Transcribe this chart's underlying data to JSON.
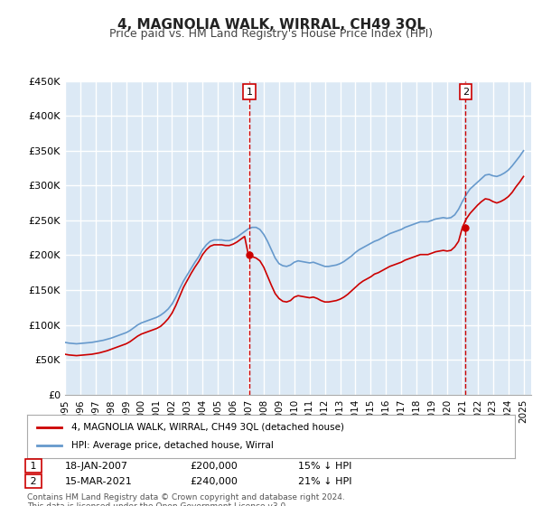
{
  "title": "4, MAGNOLIA WALK, WIRRAL, CH49 3QL",
  "subtitle": "Price paid vs. HM Land Registry's House Price Index (HPI)",
  "ylabel": "",
  "xlabel": "",
  "ylim": [
    0,
    450000
  ],
  "yticks": [
    0,
    50000,
    100000,
    150000,
    200000,
    250000,
    300000,
    350000,
    400000,
    450000
  ],
  "ytick_labels": [
    "£0",
    "£50K",
    "£100K",
    "£150K",
    "£200K",
    "£250K",
    "£300K",
    "£350K",
    "£400K",
    "£450K"
  ],
  "xlim_start": 1995.0,
  "xlim_end": 2025.5,
  "bg_color": "#dce9f5",
  "grid_color": "#ffffff",
  "red_line_color": "#cc0000",
  "blue_line_color": "#6699cc",
  "annotation_box_color": "#cc0000",
  "legend_entries": [
    "4, MAGNOLIA WALK, WIRRAL, CH49 3QL (detached house)",
    "HPI: Average price, detached house, Wirral"
  ],
  "footnote": "Contains HM Land Registry data © Crown copyright and database right 2024.\nThis data is licensed under the Open Government Licence v3.0.",
  "point1_x": 2007.05,
  "point1_y": 200000,
  "point1_label": "1",
  "point1_date": "18-JAN-2007",
  "point1_price": "£200,000",
  "point1_hpi": "15% ↓ HPI",
  "point2_x": 2021.21,
  "point2_y": 240000,
  "point2_label": "2",
  "point2_date": "15-MAR-2021",
  "point2_price": "£240,000",
  "point2_hpi": "21% ↓ HPI",
  "hpi_data_x": [
    1995.0,
    1995.25,
    1995.5,
    1995.75,
    1996.0,
    1996.25,
    1996.5,
    1996.75,
    1997.0,
    1997.25,
    1997.5,
    1997.75,
    1998.0,
    1998.25,
    1998.5,
    1998.75,
    1999.0,
    1999.25,
    1999.5,
    1999.75,
    2000.0,
    2000.25,
    2000.5,
    2000.75,
    2001.0,
    2001.25,
    2001.5,
    2001.75,
    2002.0,
    2002.25,
    2002.5,
    2002.75,
    2003.0,
    2003.25,
    2003.5,
    2003.75,
    2004.0,
    2004.25,
    2004.5,
    2004.75,
    2005.0,
    2005.25,
    2005.5,
    2005.75,
    2006.0,
    2006.25,
    2006.5,
    2006.75,
    2007.0,
    2007.25,
    2007.5,
    2007.75,
    2008.0,
    2008.25,
    2008.5,
    2008.75,
    2009.0,
    2009.25,
    2009.5,
    2009.75,
    2010.0,
    2010.25,
    2010.5,
    2010.75,
    2011.0,
    2011.25,
    2011.5,
    2011.75,
    2012.0,
    2012.25,
    2012.5,
    2012.75,
    2013.0,
    2013.25,
    2013.5,
    2013.75,
    2014.0,
    2014.25,
    2014.5,
    2014.75,
    2015.0,
    2015.25,
    2015.5,
    2015.75,
    2016.0,
    2016.25,
    2016.5,
    2016.75,
    2017.0,
    2017.25,
    2017.5,
    2017.75,
    2018.0,
    2018.25,
    2018.5,
    2018.75,
    2019.0,
    2019.25,
    2019.5,
    2019.75,
    2020.0,
    2020.25,
    2020.5,
    2020.75,
    2021.0,
    2021.25,
    2021.5,
    2021.75,
    2022.0,
    2022.25,
    2022.5,
    2022.75,
    2023.0,
    2023.25,
    2023.5,
    2023.75,
    2024.0,
    2024.25,
    2024.5,
    2024.75,
    2025.0
  ],
  "hpi_data_y": [
    75000,
    74000,
    73500,
    73000,
    73500,
    74000,
    74500,
    75000,
    76000,
    77000,
    78000,
    79500,
    81000,
    83000,
    85000,
    87000,
    89000,
    92000,
    96000,
    100000,
    103000,
    105000,
    107000,
    109000,
    111000,
    114000,
    118000,
    123000,
    130000,
    140000,
    152000,
    163000,
    172000,
    181000,
    190000,
    198000,
    208000,
    215000,
    220000,
    222000,
    222000,
    222000,
    221000,
    221000,
    223000,
    226000,
    230000,
    234000,
    238000,
    240000,
    240000,
    237000,
    230000,
    220000,
    208000,
    196000,
    188000,
    185000,
    184000,
    186000,
    190000,
    192000,
    191000,
    190000,
    189000,
    190000,
    188000,
    186000,
    184000,
    184000,
    185000,
    186000,
    188000,
    191000,
    195000,
    199000,
    204000,
    208000,
    211000,
    214000,
    217000,
    220000,
    222000,
    225000,
    228000,
    231000,
    233000,
    235000,
    237000,
    240000,
    242000,
    244000,
    246000,
    248000,
    248000,
    248000,
    250000,
    252000,
    253000,
    254000,
    253000,
    254000,
    258000,
    266000,
    277000,
    287000,
    295000,
    300000,
    305000,
    310000,
    315000,
    316000,
    314000,
    313000,
    315000,
    318000,
    322000,
    328000,
    335000,
    342000,
    350000
  ],
  "red_data_x": [
    1995.0,
    1995.25,
    1995.5,
    1995.75,
    1996.0,
    1996.25,
    1996.5,
    1996.75,
    1997.0,
    1997.25,
    1997.5,
    1997.75,
    1998.0,
    1998.25,
    1998.5,
    1998.75,
    1999.0,
    1999.25,
    1999.5,
    1999.75,
    2000.0,
    2000.25,
    2000.5,
    2000.75,
    2001.0,
    2001.25,
    2001.5,
    2001.75,
    2002.0,
    2002.25,
    2002.5,
    2002.75,
    2003.0,
    2003.25,
    2003.5,
    2003.75,
    2004.0,
    2004.25,
    2004.5,
    2004.75,
    2005.0,
    2005.25,
    2005.5,
    2005.75,
    2006.0,
    2006.25,
    2006.5,
    2006.75,
    2007.0,
    2007.25,
    2007.5,
    2007.75,
    2008.0,
    2008.25,
    2008.5,
    2008.75,
    2009.0,
    2009.25,
    2009.5,
    2009.75,
    2010.0,
    2010.25,
    2010.5,
    2010.75,
    2011.0,
    2011.25,
    2011.5,
    2011.75,
    2012.0,
    2012.25,
    2012.5,
    2012.75,
    2013.0,
    2013.25,
    2013.5,
    2013.75,
    2014.0,
    2014.25,
    2014.5,
    2014.75,
    2015.0,
    2015.25,
    2015.5,
    2015.75,
    2016.0,
    2016.25,
    2016.5,
    2016.75,
    2017.0,
    2017.25,
    2017.5,
    2017.75,
    2018.0,
    2018.25,
    2018.5,
    2018.75,
    2019.0,
    2019.25,
    2019.5,
    2019.75,
    2020.0,
    2020.25,
    2020.5,
    2020.75,
    2021.0,
    2021.25,
    2021.5,
    2021.75,
    2022.0,
    2022.25,
    2022.5,
    2022.75,
    2023.0,
    2023.25,
    2023.5,
    2023.75,
    2024.0,
    2024.25,
    2024.5,
    2024.75,
    2025.0
  ],
  "red_data_y": [
    58000,
    57000,
    56500,
    56000,
    56500,
    57000,
    57500,
    58000,
    59000,
    60000,
    61500,
    63000,
    65000,
    67000,
    69000,
    71000,
    73000,
    76000,
    80000,
    84000,
    87000,
    89000,
    91000,
    93000,
    95000,
    98000,
    103000,
    109000,
    117000,
    128000,
    141000,
    154000,
    164000,
    174000,
    183000,
    191000,
    201000,
    208000,
    213000,
    215000,
    215000,
    215000,
    214000,
    214000,
    216000,
    219000,
    223000,
    227000,
    200000,
    198000,
    196000,
    192000,
    183000,
    170000,
    157000,
    145000,
    138000,
    134000,
    133000,
    135000,
    140000,
    142000,
    141000,
    140000,
    139000,
    140000,
    138000,
    135000,
    133000,
    133000,
    134000,
    135000,
    137000,
    140000,
    144000,
    149000,
    154000,
    159000,
    163000,
    166000,
    169000,
    173000,
    175000,
    178000,
    181000,
    184000,
    186000,
    188000,
    190000,
    193000,
    195000,
    197000,
    199000,
    201000,
    201000,
    201000,
    203000,
    205000,
    206000,
    207000,
    206000,
    207000,
    212000,
    220000,
    240000,
    252000,
    260000,
    266000,
    272000,
    277000,
    281000,
    280000,
    277000,
    275000,
    277000,
    280000,
    284000,
    290000,
    298000,
    305000,
    313000
  ]
}
